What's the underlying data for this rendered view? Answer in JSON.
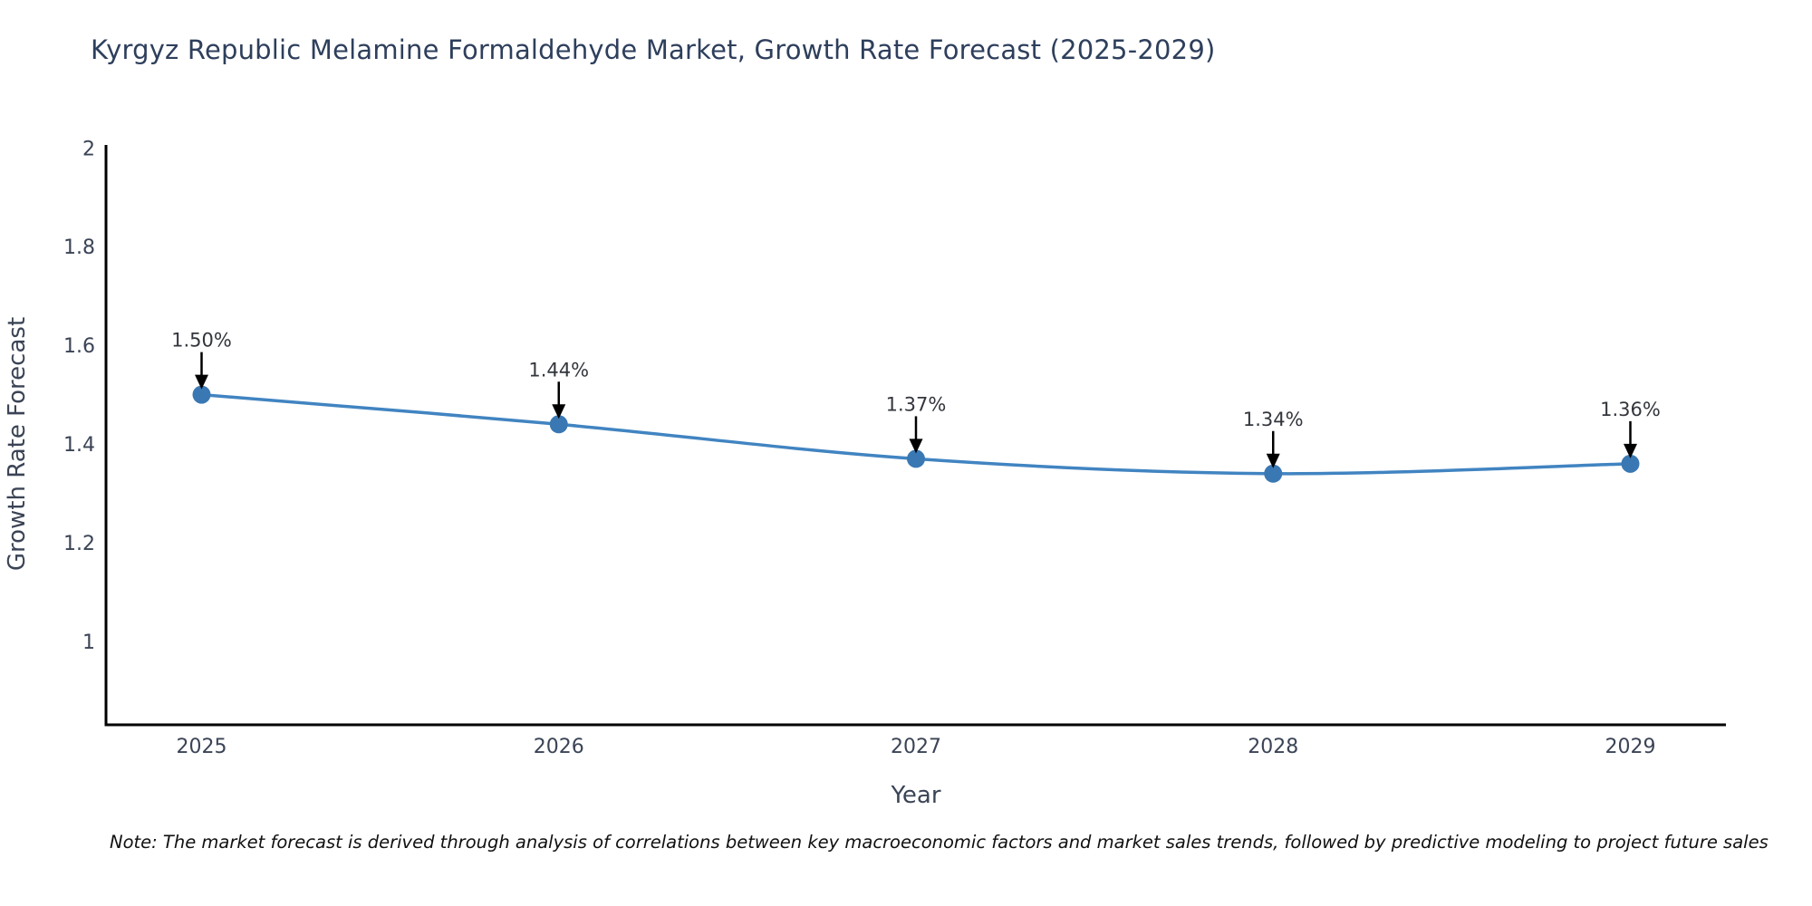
{
  "chart": {
    "title": "Kyrgyz Republic Melamine Formaldehyde Market, Growth Rate Forecast (2025-2029)",
    "xlabel": "Year",
    "ylabel": "Growth Rate Forecast"
  },
  "note": "Note: The market forecast is derived through analysis of correlations between key macroeconomic factors and market sales trends, followed by predictive modeling to project future sales",
  "chart_data": {
    "type": "line",
    "title": "Kyrgyz Republic Melamine Formaldehyde Market, Growth Rate Forecast (2025-2029)",
    "xlabel": "Year",
    "ylabel": "Growth Rate Forecast",
    "x": [
      2025,
      2026,
      2027,
      2028,
      2029
    ],
    "values": [
      1.5,
      1.44,
      1.37,
      1.34,
      1.36
    ],
    "point_labels": [
      "1.50%",
      "1.44%",
      "1.37%",
      "1.34%",
      "1.36%"
    ],
    "xticks": [
      "2025",
      "2026",
      "2027",
      "2028",
      "2029"
    ],
    "yticks": [
      1,
      1.2,
      1.4,
      1.6,
      1.8,
      2
    ],
    "ylim": [
      0.831,
      2.006
    ],
    "grid": false,
    "legend": null,
    "annotation_style": "down-arrow",
    "colors": {
      "line": "#4184c1",
      "marker": "#3a78b3",
      "axis": "#000000",
      "tick_text": "#3b4456",
      "axis_label_text": "#3b4456",
      "title_text": "#2e3f5c",
      "annotation_text": "#33363c",
      "annotation_arrow": "#000000",
      "background": "#ffffff"
    }
  }
}
